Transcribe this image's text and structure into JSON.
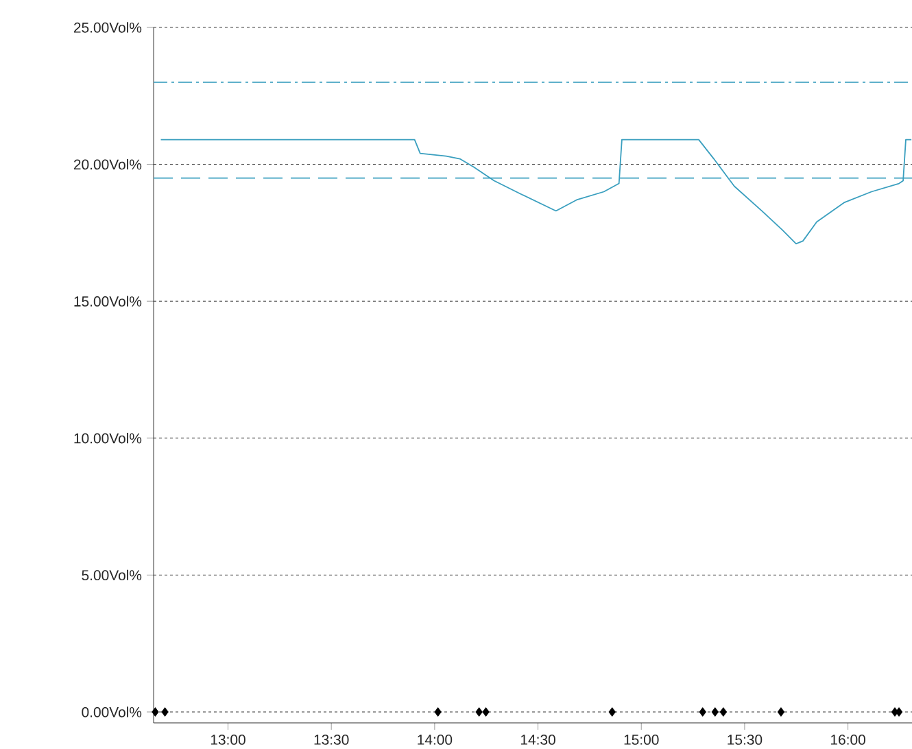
{
  "chart_data": {
    "type": "line",
    "xlim": [
      12.64,
      16.31
    ],
    "ylim": [
      -0.4,
      25
    ],
    "xticks": [
      {
        "value": 13,
        "label": "13:00"
      },
      {
        "value": 13.5,
        "label": "13:30"
      },
      {
        "value": 14,
        "label": "14:00"
      },
      {
        "value": 14.5,
        "label": "14:30"
      },
      {
        "value": 15,
        "label": "15:00"
      },
      {
        "value": 15.5,
        "label": "15:30"
      },
      {
        "value": 16,
        "label": "16:00"
      }
    ],
    "yticks": [
      {
        "value": 0,
        "label": "0.00Vol%"
      },
      {
        "value": 5,
        "label": "5.00Vol%"
      },
      {
        "value": 10,
        "label": "10.00Vol%"
      },
      {
        "value": 15,
        "label": "15.00Vol%"
      },
      {
        "value": 20,
        "label": "20.00Vol%"
      },
      {
        "value": 25,
        "label": "25.00Vol%"
      }
    ],
    "grid": "y",
    "ref_lines": [
      {
        "axis": "y",
        "value": 23,
        "color": "#3a9fbf",
        "line_style": "dashdot"
      },
      {
        "axis": "y",
        "value": 19.5,
        "color": "#3a9fbf",
        "line_style": "dashed"
      }
    ],
    "series": [
      {
        "color": "#3a9fbf",
        "marker": "none",
        "x": [
          12.675,
          13.903,
          13.93,
          14.056,
          14.122,
          14.189,
          14.288,
          14.421,
          14.587,
          14.687,
          14.819,
          14.892,
          14.906,
          15.278,
          15.351,
          15.45,
          15.583,
          15.683,
          15.749,
          15.782,
          15.849,
          15.981,
          16.114,
          16.247,
          16.267,
          16.28,
          16.307
        ],
        "values": [
          20.9,
          20.9,
          20.4,
          20.3,
          20.2,
          19.9,
          19.4,
          18.9,
          18.3,
          18.7,
          19.0,
          19.3,
          20.9,
          20.9,
          20.2,
          19.2,
          18.3,
          17.6,
          17.1,
          17.2,
          17.9,
          18.6,
          19.0,
          19.3,
          19.4,
          20.9,
          20.9
        ]
      },
      {
        "type": "scatter",
        "color": "#000000",
        "marker": "diamond",
        "x": [
          12.648,
          12.695,
          14.016,
          14.215,
          14.248,
          14.859,
          15.297,
          15.357,
          15.397,
          15.676,
          16.227,
          16.247
        ],
        "values": [
          0,
          0,
          0,
          0,
          0,
          0,
          0,
          0,
          0,
          0,
          0,
          0
        ]
      }
    ]
  }
}
